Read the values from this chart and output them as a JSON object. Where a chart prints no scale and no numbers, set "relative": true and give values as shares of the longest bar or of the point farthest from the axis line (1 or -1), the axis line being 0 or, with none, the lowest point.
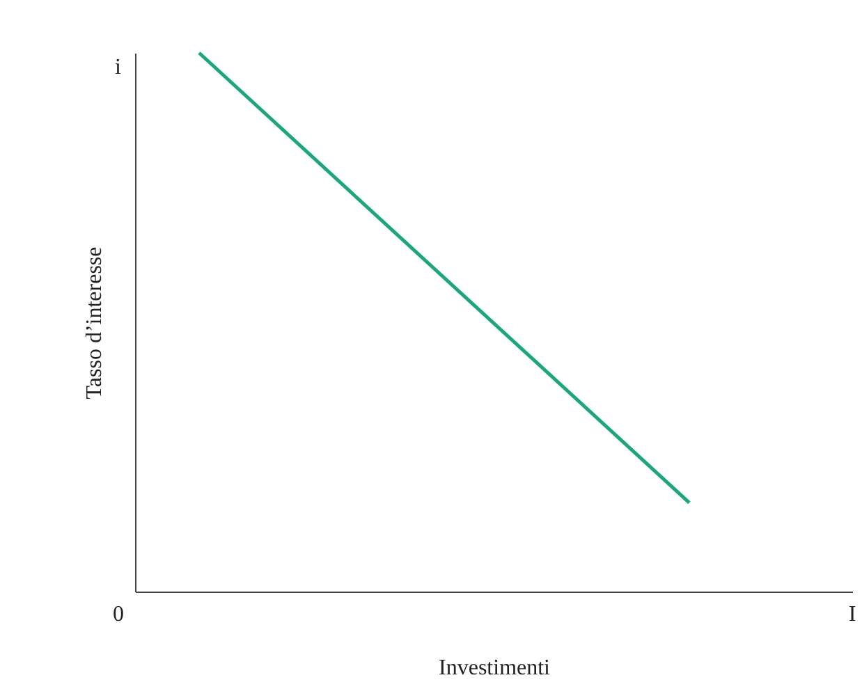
{
  "chart_data": {
    "type": "line",
    "relative": true,
    "xlabel": "Investimenti",
    "ylabel": "Tasso d’interesse",
    "categories": [
      null,
      null
    ],
    "values": [
      1,
      0.165
    ],
    "color": "#1aa67e",
    "annotations": [
      "i",
      "0",
      "I"
    ]
  }
}
